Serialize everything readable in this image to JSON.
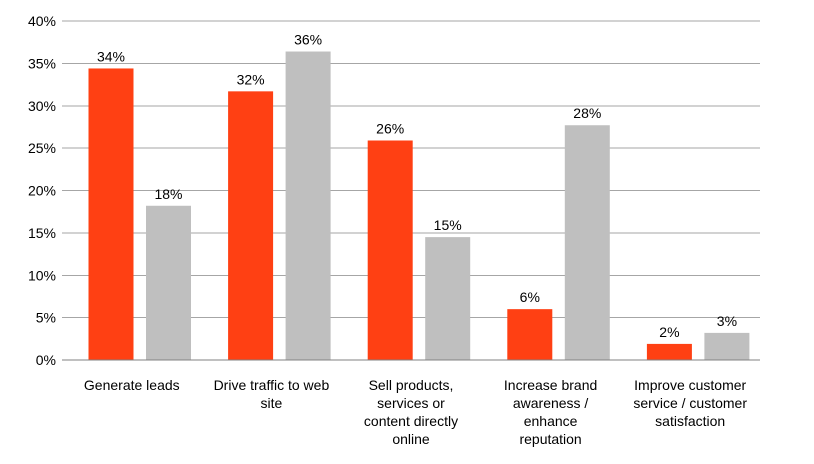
{
  "chart_data": {
    "type": "bar",
    "title": "",
    "xlabel": "",
    "ylabel": "",
    "ylim": [
      0,
      40
    ],
    "yticks": [
      0,
      5,
      10,
      15,
      20,
      25,
      30,
      35,
      40
    ],
    "ytick_labels": [
      "0%",
      "5%",
      "10%",
      "15%",
      "20%",
      "25%",
      "30%",
      "35%",
      "40%"
    ],
    "grid": true,
    "legend": "none",
    "categories": [
      "Generate leads",
      "Drive traffic to web site",
      "Sell products, services or content directly online",
      "Increase brand awareness / enhance reputation",
      "Improve customer service / customer satisfaction"
    ],
    "category_lines": [
      [
        "Generate leads"
      ],
      [
        "Drive traffic to web",
        "site"
      ],
      [
        "Sell products,",
        "services or",
        "content directly",
        "online"
      ],
      [
        "Increase brand",
        "awareness /",
        "enhance",
        "reputation"
      ],
      [
        "Improve customer",
        "service / customer",
        "satisfaction"
      ]
    ],
    "series": [
      {
        "color": "#ff4013",
        "values": [
          34.4,
          31.7,
          25.9,
          6.0,
          1.9
        ],
        "labels": [
          "34%",
          "32%",
          "26%",
          "6%",
          "2%"
        ]
      },
      {
        "color": "#bfbfbf",
        "values": [
          18.2,
          36.4,
          14.5,
          27.7,
          3.2
        ],
        "labels": [
          "18%",
          "36%",
          "15%",
          "28%",
          "3%"
        ]
      }
    ]
  }
}
